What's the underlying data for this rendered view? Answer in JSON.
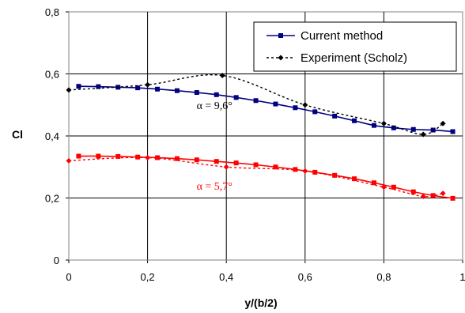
{
  "chart_data": {
    "type": "line",
    "xlabel": "y/(b/2)",
    "ylabel": "Cl",
    "xlim": [
      0,
      1
    ],
    "ylim": [
      0,
      0.8
    ],
    "x_ticks": [
      "0",
      "0,2",
      "0,4",
      "0,6",
      "0,8",
      "1"
    ],
    "y_ticks": [
      "0",
      "0,2",
      "0,4",
      "0,6",
      "0,8"
    ],
    "grid": true,
    "legend_position": "top-right",
    "legend": [
      {
        "label": "Current method",
        "style": "solid",
        "marker": "square"
      },
      {
        "label": "Experiment (Scholz)",
        "style": "dotted",
        "marker": "diamond"
      }
    ],
    "annotations": [
      {
        "text": "α = 9,6°",
        "x": 0.37,
        "y": 0.5,
        "color": "#000000"
      },
      {
        "text": "α = 5,7°",
        "x": 0.37,
        "y": 0.24,
        "color": "#ff0000"
      }
    ],
    "series": [
      {
        "group": "α = 9,6°",
        "kind": "Current method",
        "color": "#000080",
        "x": [
          0.025,
          0.075,
          0.125,
          0.175,
          0.225,
          0.275,
          0.325,
          0.375,
          0.425,
          0.475,
          0.525,
          0.575,
          0.625,
          0.675,
          0.725,
          0.775,
          0.825,
          0.875,
          0.925,
          0.975
        ],
        "y": [
          0.56,
          0.559,
          0.557,
          0.555,
          0.551,
          0.546,
          0.54,
          0.533,
          0.524,
          0.514,
          0.503,
          0.491,
          0.478,
          0.464,
          0.449,
          0.434,
          0.426,
          0.421,
          0.419,
          0.414
        ]
      },
      {
        "group": "α = 9,6°",
        "kind": "Experiment (Scholz)",
        "color": "#000000",
        "x": [
          0.0,
          0.2,
          0.39,
          0.6,
          0.8,
          0.9,
          0.95
        ],
        "y": [
          0.548,
          0.565,
          0.595,
          0.5,
          0.44,
          0.405,
          0.44
        ]
      },
      {
        "group": "α = 5,7°",
        "kind": "Current method",
        "color": "#ff0000",
        "x": [
          0.025,
          0.075,
          0.125,
          0.175,
          0.225,
          0.275,
          0.325,
          0.375,
          0.425,
          0.475,
          0.525,
          0.575,
          0.625,
          0.675,
          0.725,
          0.775,
          0.825,
          0.875,
          0.925,
          0.975
        ],
        "y": [
          0.335,
          0.335,
          0.334,
          0.332,
          0.33,
          0.327,
          0.323,
          0.318,
          0.313,
          0.307,
          0.3,
          0.292,
          0.283,
          0.273,
          0.262,
          0.249,
          0.235,
          0.22,
          0.208,
          0.199
        ]
      },
      {
        "group": "α = 5,7°",
        "kind": "Experiment (Scholz)",
        "color": "#ff0000",
        "x": [
          0.0,
          0.2,
          0.4,
          0.6,
          0.8,
          0.9,
          0.95
        ],
        "y": [
          0.32,
          0.33,
          0.3,
          0.287,
          0.235,
          0.205,
          0.215
        ]
      }
    ]
  }
}
